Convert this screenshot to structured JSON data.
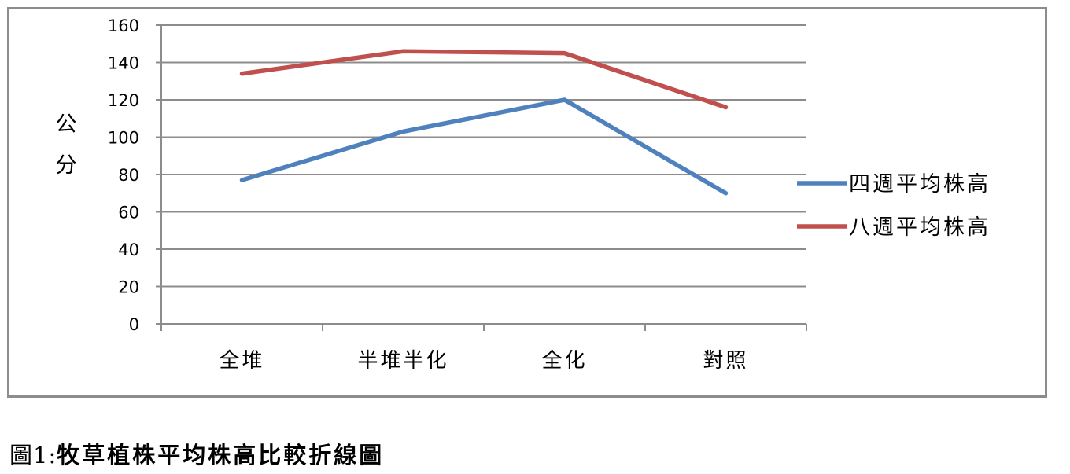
{
  "chart_data": {
    "type": "line",
    "categories": [
      "全堆",
      "半堆半化",
      "全化",
      "對照"
    ],
    "series": [
      {
        "name": "四週平均株高",
        "values": [
          77,
          103,
          120,
          70
        ],
        "color": "#4f81bd"
      },
      {
        "name": "八週平均株高",
        "values": [
          134,
          146,
          145,
          116
        ],
        "color": "#c0504d"
      }
    ],
    "ylabel": "公\n分",
    "ylim": [
      0,
      160
    ],
    "yticks": [
      0,
      20,
      40,
      60,
      80,
      100,
      120,
      140,
      160
    ],
    "grid": true,
    "legend_position": "right"
  },
  "caption": {
    "prefix": "圖1:",
    "title": "牧草植株平均株高比較折線圖"
  },
  "colors": {
    "gridline": "#8c8c8c",
    "frame": "#8c8c8c"
  }
}
